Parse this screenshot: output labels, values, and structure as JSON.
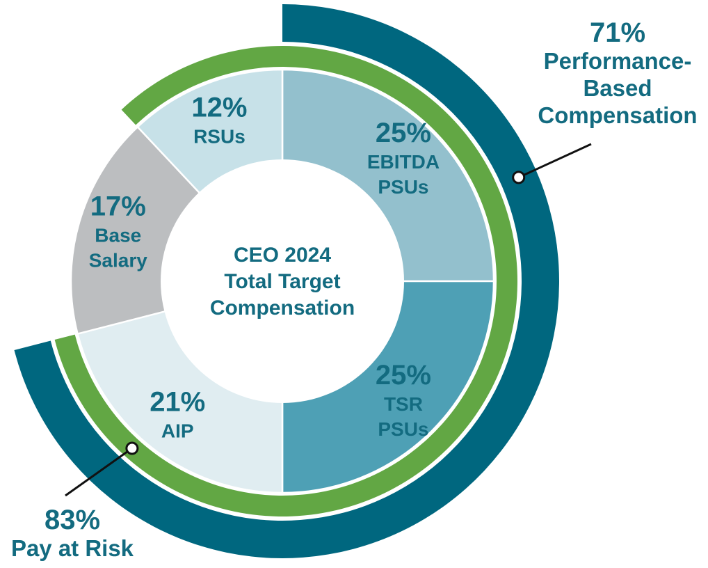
{
  "chart_data": {
    "type": "pie",
    "title": "CEO 2024 Total Target Compensation",
    "center_label_lines": [
      "CEO 2024",
      "Total Target",
      "Compensation"
    ],
    "slices": [
      {
        "key": "ebitda",
        "value": 25,
        "pct_label": "25%",
        "label_lines": [
          "EBITDA",
          "PSUs"
        ],
        "color": "#93c0cd",
        "text_color": "#136b80"
      },
      {
        "key": "tsr",
        "value": 25,
        "pct_label": "25%",
        "label_lines": [
          "TSR",
          "PSUs"
        ],
        "color": "#4ea0b5",
        "text_color": "#136b80"
      },
      {
        "key": "aip",
        "value": 21,
        "pct_label": "21%",
        "label_lines": [
          "AIP"
        ],
        "color": "#e0edf1",
        "text_color": "#136b80"
      },
      {
        "key": "base",
        "value": 17,
        "pct_label": "17%",
        "label_lines": [
          "Base",
          "Salary"
        ],
        "color": "#bcbec0",
        "text_color": "#136b80"
      },
      {
        "key": "rsus",
        "value": 12,
        "pct_label": "12%",
        "label_lines": [
          "RSUs"
        ],
        "color": "#c7e1e8",
        "text_color": "#136b80"
      }
    ],
    "arcs": [
      {
        "key": "pay_at_risk",
        "value": 83,
        "pct_label": "83%",
        "label_lines": [
          "Pay at Risk"
        ],
        "color": "#62a744",
        "covers": [
          "ebitda",
          "tsr",
          "aip",
          "rsus"
        ]
      },
      {
        "key": "performance_based",
        "value": 71,
        "pct_label": "71%",
        "label_lines": [
          "Performance-",
          "Based",
          "Compensation"
        ],
        "color": "#00677f",
        "covers": [
          "ebitda",
          "tsr",
          "aip"
        ]
      }
    ],
    "label_color": "#136b80"
  }
}
